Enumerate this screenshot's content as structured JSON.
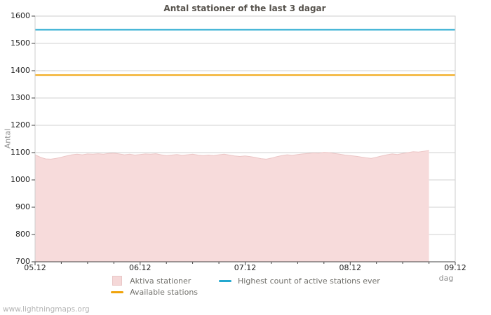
{
  "title": "Antal stationer of the last 3 dagar",
  "watermark": "www.lightningmaps.org",
  "axes": {
    "y_label": "Antal",
    "x_label": "dag"
  },
  "legend": [
    {
      "label": "Aktiva stationer",
      "type": "area",
      "color": "#f5d8d8",
      "border": "#e9c6c6"
    },
    {
      "label": "Highest count of active stations ever",
      "type": "line",
      "color": "#24a8cf"
    },
    {
      "label": "Available stations",
      "type": "line",
      "color": "#f0a30a"
    }
  ],
  "chart_data": {
    "type": "area",
    "title": "Antal stationer of the last 3 dagar",
    "xlabel": "dag",
    "ylabel": "Antal",
    "ylim": [
      700,
      1600
    ],
    "y_ticks": [
      700,
      800,
      900,
      1000,
      1100,
      1200,
      1300,
      1400,
      1500,
      1600
    ],
    "x_range_days": [
      0,
      4
    ],
    "x_ticks": [
      {
        "pos": 0,
        "label": "05.12"
      },
      {
        "pos": 1,
        "label": "06.12"
      },
      {
        "pos": 2,
        "label": "07.12"
      },
      {
        "pos": 3,
        "label": "08.12"
      },
      {
        "pos": 4,
        "label": "09.12"
      }
    ],
    "x_minor_tick_step_days": 0.25,
    "grid": true,
    "legend_position": "bottom",
    "colors": {
      "grid": "#d2d2d2",
      "frame": "#cccccc",
      "axis": "#444444"
    },
    "series": [
      {
        "name": "Aktiva stationer",
        "type": "area",
        "fill": "#f7dbdb",
        "stroke": "#ecc6c6",
        "x_start_days": 0,
        "x_step_days": 0.05,
        "values": [
          1092,
          1083,
          1077,
          1076,
          1079,
          1083,
          1088,
          1092,
          1094,
          1092,
          1095,
          1094,
          1096,
          1094,
          1097,
          1098,
          1095,
          1092,
          1094,
          1091,
          1093,
          1095,
          1094,
          1096,
          1092,
          1089,
          1091,
          1093,
          1090,
          1092,
          1094,
          1091,
          1089,
          1091,
          1089,
          1092,
          1094,
          1091,
          1088,
          1086,
          1088,
          1085,
          1082,
          1078,
          1076,
          1080,
          1085,
          1089,
          1092,
          1090,
          1093,
          1095,
          1097,
          1099,
          1098,
          1101,
          1100,
          1097,
          1094,
          1091,
          1089,
          1087,
          1084,
          1081,
          1079,
          1083,
          1088,
          1092,
          1095,
          1093,
          1097,
          1100,
          1103,
          1102,
          1105,
          1108
        ]
      },
      {
        "name": "Available stations",
        "type": "hline",
        "value": 1384,
        "color": "#f0a30a"
      },
      {
        "name": "Highest count of active stations ever",
        "type": "hline",
        "value": 1550,
        "color": "#24a8cf"
      }
    ]
  }
}
